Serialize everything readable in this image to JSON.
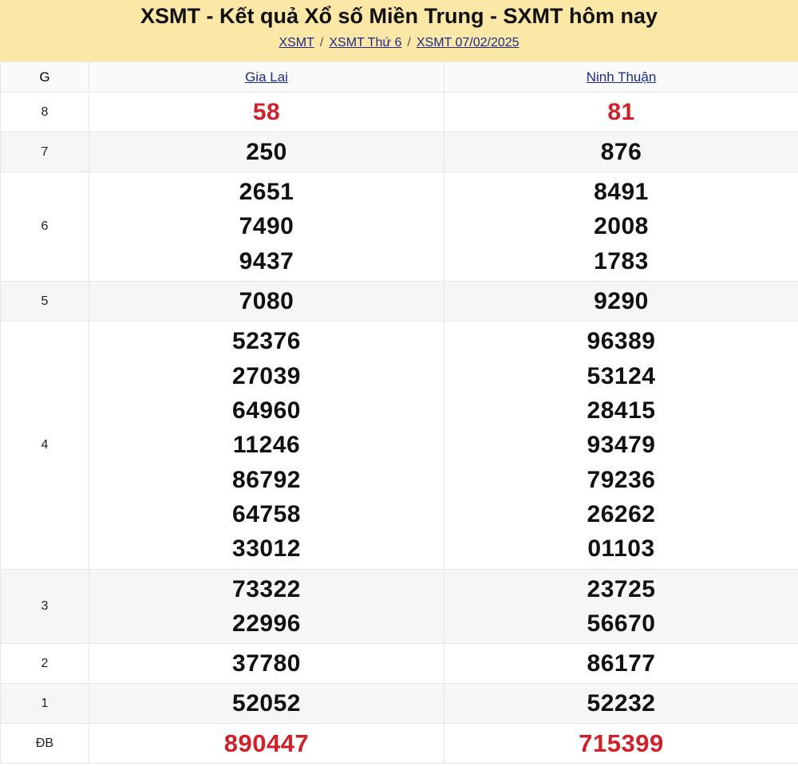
{
  "header": {
    "title": "XSMT - Kết quả Xổ số Miền Trung - SXMT hôm nay",
    "breadcrumbs": [
      "XSMT",
      "XSMT Thứ 6",
      "XSMT 07/02/2025"
    ],
    "separator": "/"
  },
  "table": {
    "col_g": "G",
    "provinces": [
      "Gia Lai",
      "Ninh Thuận"
    ],
    "rows": [
      {
        "prize": "8",
        "values": [
          [
            "58"
          ],
          [
            "81"
          ]
        ],
        "highlight": true
      },
      {
        "prize": "7",
        "values": [
          [
            "250"
          ],
          [
            "876"
          ]
        ]
      },
      {
        "prize": "6",
        "values": [
          [
            "2651",
            "7490",
            "9437"
          ],
          [
            "8491",
            "2008",
            "1783"
          ]
        ]
      },
      {
        "prize": "5",
        "values": [
          [
            "7080"
          ],
          [
            "9290"
          ]
        ]
      },
      {
        "prize": "4",
        "values": [
          [
            "52376",
            "27039",
            "64960",
            "11246",
            "86792",
            "64758",
            "33012"
          ],
          [
            "96389",
            "53124",
            "28415",
            "93479",
            "79236",
            "26262",
            "01103"
          ]
        ]
      },
      {
        "prize": "3",
        "values": [
          [
            "73322",
            "22996"
          ],
          [
            "23725",
            "56670"
          ]
        ]
      },
      {
        "prize": "2",
        "values": [
          [
            "37780"
          ],
          [
            "86177"
          ]
        ]
      },
      {
        "prize": "1",
        "values": [
          [
            "52052"
          ],
          [
            "52232"
          ]
        ]
      },
      {
        "prize": "ĐB",
        "values": [
          [
            "890447"
          ],
          [
            "715399"
          ]
        ],
        "highlight": true
      }
    ]
  },
  "colors": {
    "banner": "#fbe8a6",
    "highlight": "#d0202a",
    "link": "#1a2a8c"
  }
}
